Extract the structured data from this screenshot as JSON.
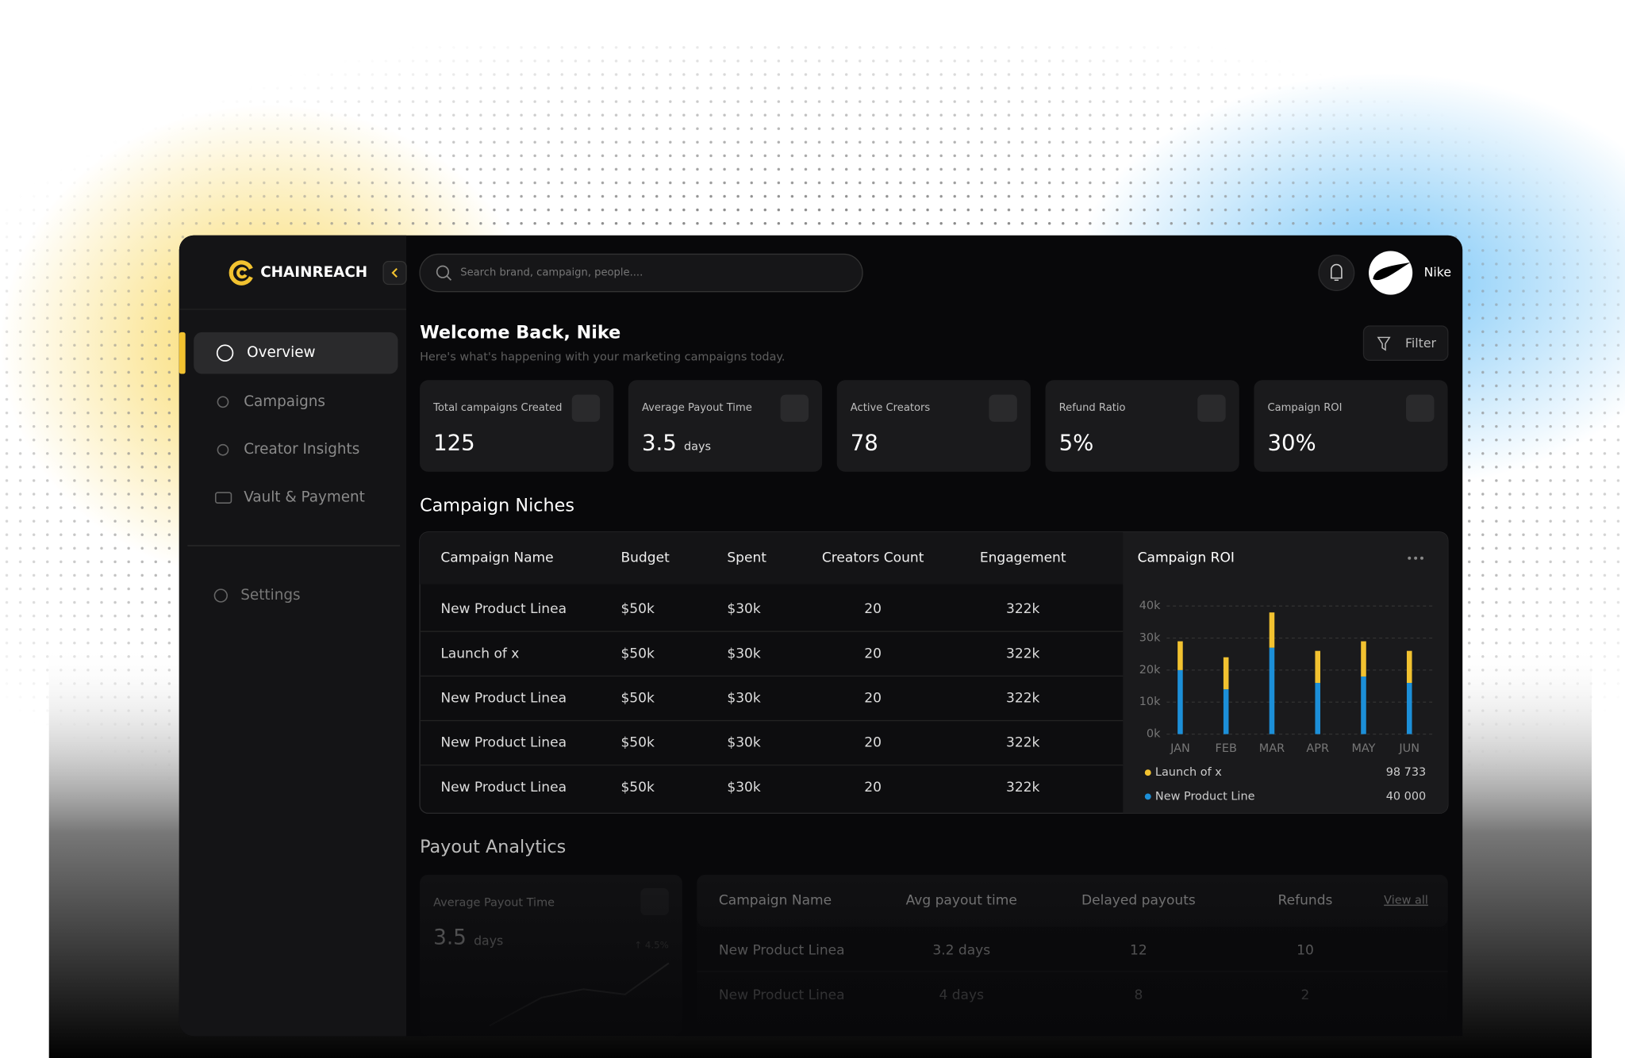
{
  "brand": "CHAINREACH",
  "search_placeholder": "Search brand, campaign, people....",
  "user": "Nike",
  "nav": [
    "Overview",
    "Campaigns",
    "Creator Insights",
    "Vault & Payment"
  ],
  "settings": "Settings",
  "welcome": {
    "title": "Welcome Back, Nike",
    "subtitle": "Here's what's happening with your marketing campaigns today."
  },
  "filter": "Filter",
  "stats": [
    {
      "label": "Total campaigns Created",
      "value": "125"
    },
    {
      "label": "Average Payout Time",
      "value": "3.5",
      "unit": "days"
    },
    {
      "label": "Active Creators",
      "value": "78"
    },
    {
      "label": "Refund Ratio",
      "value": "5%"
    },
    {
      "label": "Campaign ROI",
      "value": "30%"
    }
  ],
  "niches": {
    "title": "Campaign Niches",
    "columns": [
      "Campaign Name",
      "Budget",
      "Spent",
      "Creators Count",
      "Engagement"
    ],
    "rows": [
      [
        "New Product Linea",
        "$50k",
        "$30k",
        "20",
        "322k"
      ],
      [
        "Launch of x",
        "$50k",
        "$30k",
        "20",
        "322k"
      ],
      [
        "New Product Linea",
        "$50k",
        "$30k",
        "20",
        "322k"
      ],
      [
        "New Product Linea",
        "$50k",
        "$30k",
        "20",
        "322k"
      ],
      [
        "New Product Linea",
        "$50k",
        "$30k",
        "20",
        "322k"
      ]
    ]
  },
  "chart_data": {
    "type": "bar",
    "stacked": true,
    "title": "Campaign ROI",
    "categories": [
      "JAN",
      "FEB",
      "MAR",
      "APR",
      "MAY",
      "JUN"
    ],
    "series": [
      {
        "name": "Launch of x",
        "color": "#f2c230",
        "values": [
          9000,
          10000,
          11000,
          10000,
          11000,
          10000
        ],
        "legend_value": "98 733"
      },
      {
        "name": "New Product Line",
        "color": "#1c8fd8",
        "values": [
          20000,
          14000,
          27000,
          16000,
          18000,
          16000
        ],
        "legend_value": "40 000"
      }
    ],
    "ylim": [
      0,
      40000
    ],
    "yticks": [
      {
        "value": 0,
        "label": "0k"
      },
      {
        "value": 10000,
        "label": "10k"
      },
      {
        "value": 20000,
        "label": "20k"
      },
      {
        "value": 30000,
        "label": "30k"
      },
      {
        "value": 40000,
        "label": "40k"
      }
    ],
    "grid": true
  },
  "payout": {
    "title": "Payout Analytics",
    "card": {
      "label": "Average Payout Time",
      "value": "3.5",
      "unit": "days",
      "change": "↑ 4.5%"
    },
    "columns": [
      "Campaign Name",
      "Avg payout time",
      "Delayed payouts",
      "Refunds"
    ],
    "view_all": "View all",
    "rows": [
      [
        "New Product Linea",
        "3.2 days",
        "12",
        "10"
      ],
      [
        "New Product Linea",
        "4 days",
        "8",
        "2"
      ]
    ]
  }
}
